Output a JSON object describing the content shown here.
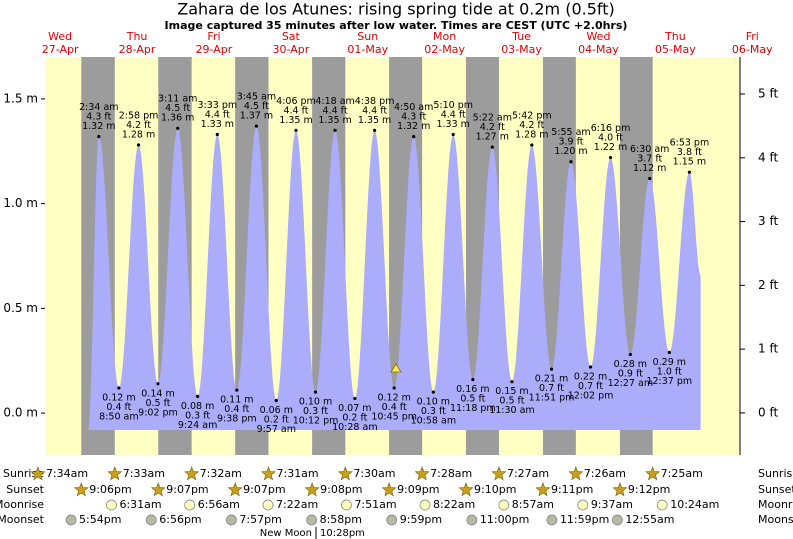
{
  "header": {
    "title": "Zahara de los Atunes: rising  spring tide at 0.2m (0.5ft)",
    "subtitle": "Image captured 35 minutes after low water. Times are CEST (UTC +2.0hrs)"
  },
  "chart_data": {
    "type": "tide",
    "days": [
      {
        "weekday": "Wed",
        "date": "27-Apr"
      },
      {
        "weekday": "Thu",
        "date": "28-Apr"
      },
      {
        "weekday": "Fri",
        "date": "29-Apr"
      },
      {
        "weekday": "Sat",
        "date": "30-Apr"
      },
      {
        "weekday": "Sun",
        "date": "01-May"
      },
      {
        "weekday": "Mon",
        "date": "02-May"
      },
      {
        "weekday": "Tue",
        "date": "03-May"
      },
      {
        "weekday": "Wed",
        "date": "04-May"
      },
      {
        "weekday": "Thu",
        "date": "05-May"
      },
      {
        "weekday": "Fri",
        "date": "06-May"
      }
    ],
    "ylim": [
      -0.2,
      1.7
    ],
    "yticks": [
      {
        "value": 1.5,
        "label": "1.5 m"
      },
      {
        "value": 1.0,
        "label": "1.0 m"
      },
      {
        "value": 0.5,
        "label": "0.5 m"
      },
      {
        "value": 0.0,
        "label": "0.0 m"
      }
    ],
    "y2lim": [
      -0.66,
      5.58
    ],
    "y2ticks": [
      {
        "value": 5,
        "label": "5 ft"
      },
      {
        "value": 4,
        "label": "4 ft"
      },
      {
        "value": 3,
        "label": "3 ft"
      },
      {
        "value": 2,
        "label": "2 ft"
      },
      {
        "value": 1,
        "label": "1 ft"
      },
      {
        "value": 0,
        "label": "0 ft"
      }
    ],
    "colors": {
      "night": "#9c9c9c",
      "day": "#ffffc4",
      "water": "#abadfb",
      "day_label": "#e00000"
    },
    "tides": {
      "x": [
        "2:34 am",
        "8:50 am",
        "2:58 pm",
        "9:02 pm",
        "3:11 am",
        "9:24 am",
        "3:33 pm",
        "9:38 pm",
        "3:45 am",
        "9:57 am",
        "4:06 pm",
        "10:12 pm",
        "4:18 am",
        "10:28 am",
        "4:38 pm",
        "10:45 pm",
        "4:50 am",
        "10:58 am",
        "5:10 pm",
        "11:18 pm",
        "5:22 am",
        "11:30 am",
        "5:42 pm",
        "11:51 pm",
        "5:55 am",
        "12:02 pm",
        "6:16 pm",
        "12:27 am",
        "6:30 am",
        "12:37 pm",
        "6:53 pm"
      ],
      "values": [
        1.32,
        0.12,
        1.28,
        0.14,
        1.36,
        0.08,
        1.33,
        0.11,
        1.37,
        0.06,
        1.35,
        0.1,
        1.35,
        0.07,
        1.35,
        0.12,
        1.32,
        0.1,
        1.33,
        0.16,
        1.27,
        0.15,
        1.28,
        0.21,
        1.2,
        0.22,
        1.22,
        0.28,
        1.12,
        0.29,
        1.15
      ],
      "value_labels": [
        "1.32 m",
        "0.12 m",
        "1.28 m",
        "0.14 m",
        "1.36 m",
        "0.08 m",
        "1.33 m",
        "0.11 m",
        "1.37 m",
        "0.06 m",
        "1.35 m",
        "0.10 m",
        "1.35 m",
        "0.07 m",
        "1.35 m",
        "0.12 m",
        "1.32 m",
        "0.10 m",
        "1.33 m",
        "0.16 m",
        "1.27 m",
        "0.15 m",
        "1.28 m",
        "0.21 m",
        "1.20 m",
        "0.22 m",
        "1.22 m",
        "0.28 m",
        "1.12 m",
        "0.29 m",
        "1.15 m"
      ],
      "ft_labels": [
        "4.3 ft",
        "0.4 ft",
        "4.2 ft",
        "0.5 ft",
        "4.5 ft",
        "0.3 ft",
        "4.4 ft",
        "0.4 ft",
        "4.5 ft",
        "0.2 ft",
        "4.4 ft",
        "0.3 ft",
        "4.4 ft",
        "0.2 ft",
        "4.4 ft",
        "0.4 ft",
        "4.3 ft",
        "0.3 ft",
        "4.4 ft",
        "0.5 ft",
        "4.2 ft",
        "0.5 ft",
        "4.2 ft",
        "0.7 ft",
        "3.9 ft",
        "0.7 ft",
        "4.0 ft",
        "0.9 ft",
        "3.7 ft",
        "1.0 ft",
        "3.8 ft"
      ]
    },
    "almanac": [
      {
        "label": "Sunrise",
        "icon": "star",
        "color": "#c8a020",
        "times": [
          "7:34am",
          "7:33am",
          "7:32am",
          "7:31am",
          "7:30am",
          "7:28am",
          "7:27am",
          "7:26am",
          "7:25am"
        ]
      },
      {
        "label": "Sunset",
        "icon": "star",
        "color": "#c8a020",
        "times": [
          "9:06pm",
          "9:07pm",
          "9:07pm",
          "9:08pm",
          "9:09pm",
          "9:10pm",
          "9:11pm",
          "9:12pm"
        ]
      },
      {
        "label": "Moonrise",
        "icon": "circle",
        "color": "#ffffc0",
        "times": [
          null,
          "6:31am",
          "6:56am",
          "7:22am",
          "7:51am",
          "8:22am",
          "8:57am",
          "9:37am",
          "10:24am"
        ]
      },
      {
        "label": "Moonset",
        "icon": "circle",
        "color": "#b8b8a8",
        "times": [
          "5:54pm",
          "6:56pm",
          "7:57pm",
          "8:58pm",
          "9:59pm",
          "11:00pm",
          "11:59pm",
          "12:55am"
        ]
      }
    ],
    "moon_phase": {
      "name": "New Moon",
      "time": "10:28pm"
    }
  }
}
